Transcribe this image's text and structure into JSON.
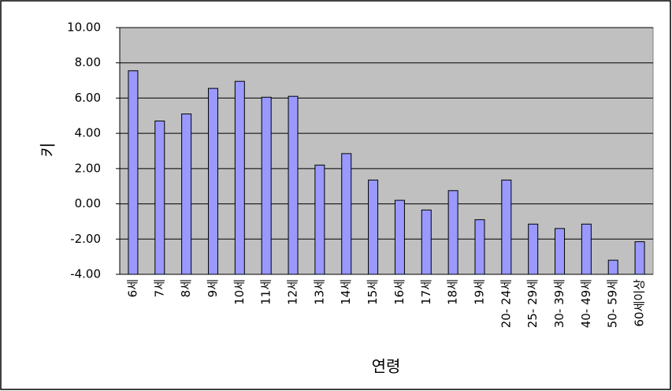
{
  "chart_data": {
    "type": "bar",
    "x_label": "연령",
    "y_label": "키",
    "categories": [
      "6세",
      "7세",
      "8세",
      "9세",
      "10세",
      "11세",
      "12세",
      "13세",
      "14세",
      "15세",
      "16세",
      "17세",
      "18세",
      "19세",
      "20- 24세",
      "25- 29세",
      "30- 39세",
      "40- 49세",
      "50- 59세",
      "60세이상"
    ],
    "values": [
      7.55,
      4.7,
      5.1,
      6.55,
      6.95,
      6.05,
      6.1,
      2.2,
      2.85,
      1.35,
      0.2,
      -0.35,
      0.75,
      -0.9,
      1.35,
      -1.15,
      -1.4,
      -1.15,
      -3.2,
      -2.15
    ],
    "color": "#9999ff",
    "ylim": [
      -4,
      10
    ],
    "yticks": [
      {
        "value": -4,
        "label": "-4.00"
      },
      {
        "value": -2,
        "label": "-2.00"
      },
      {
        "value": 0,
        "label": "0.00"
      },
      {
        "value": 2,
        "label": "2.00"
      },
      {
        "value": 4,
        "label": "4.00"
      },
      {
        "value": 6,
        "label": "6.00"
      },
      {
        "value": 8,
        "label": "8.00"
      },
      {
        "value": 10,
        "label": "10.00"
      }
    ],
    "grid": true
  }
}
